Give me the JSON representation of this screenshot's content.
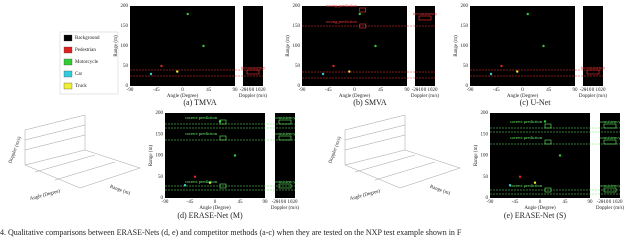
{
  "legend": [
    "Background",
    "Pedestrian",
    "Motorcycle",
    "Car",
    "Truck"
  ],
  "axes": {
    "range_label": "Range (m)",
    "angle_label": "Angle (Degree)",
    "doppler_label": "Doppler (m/s)",
    "range_ticks": [
      0,
      50,
      100,
      150,
      200
    ],
    "angle_ticks": [
      -90,
      -45,
      0,
      45,
      90
    ],
    "doppler_ticks": [
      -20,
      -10,
      0,
      10,
      20
    ]
  },
  "panels": [
    {
      "caption": "(a) TMVA",
      "heatmap_notes": [],
      "doppler_notes": [
        "inconsistency"
      ]
    },
    {
      "caption": "(b) SMVA",
      "heatmap_notes": [
        "wrong prediction",
        "wrong prediction"
      ],
      "doppler_notes": [
        "inconsistency"
      ]
    },
    {
      "caption": "(c) U-Net",
      "heatmap_notes": [],
      "doppler_notes": [
        "inconsistency"
      ]
    },
    {
      "caption": "(d) ERASE-Net (M)",
      "heatmap_notes": [
        "correct prediction",
        "correct prediction",
        "correct prediction"
      ],
      "doppler_notes": [
        "consistency",
        "consistency",
        "consistency"
      ]
    },
    {
      "caption": "(e) ERASE-Net (S)",
      "heatmap_notes": [
        "correct prediction",
        "correct prediction",
        "correct prediction"
      ],
      "doppler_notes": [
        "consistency",
        "consistency",
        "consistency"
      ]
    }
  ],
  "caption": "4.   Qualitative comparisons between ERASE-Nets (d, e) and competitor methods (a-c) when they are tested on the NXP test example shown in F"
}
